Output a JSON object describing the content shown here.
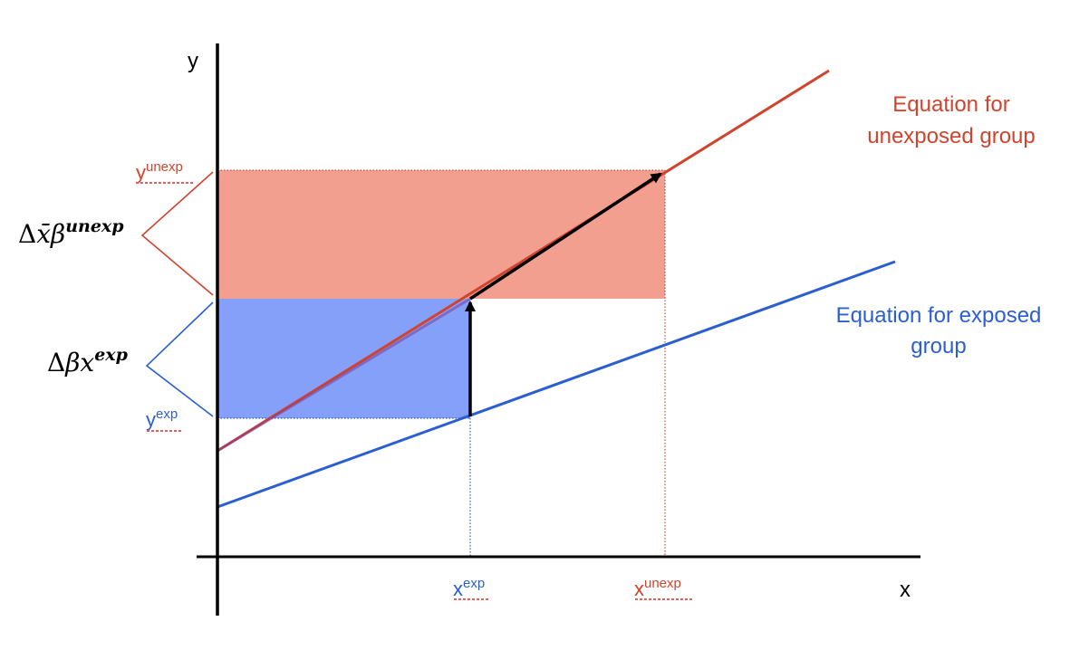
{
  "axes": {
    "y_label": "y",
    "x_label": "x"
  },
  "lines": {
    "unexposed": {
      "label_line1": "Equation for",
      "label_line2": "unexposed group",
      "color": "#d0442e"
    },
    "exposed": {
      "label_line1": "Equation for exposed",
      "label_line2": "group",
      "color": "#2b5fd0"
    }
  },
  "ticks": {
    "y_unexp": {
      "base": "y",
      "sup": "unexp"
    },
    "y_exp": {
      "base": "y",
      "sup": "exp"
    },
    "x_exp": {
      "base": "x",
      "sup": "exp"
    },
    "x_unexp": {
      "base": "x",
      "sup": "unexp"
    }
  },
  "braces": {
    "endowment": {
      "delta": "Δ",
      "var": "x̄",
      "beta": "β",
      "sup": "unexp"
    },
    "coefficient": {
      "delta": "Δ",
      "beta": "β",
      "var": "x",
      "sup": "exp"
    }
  },
  "colors": {
    "red_fill": "#f29a8a",
    "blue_fill": "#6f8ff7",
    "underline": "#e06060"
  }
}
